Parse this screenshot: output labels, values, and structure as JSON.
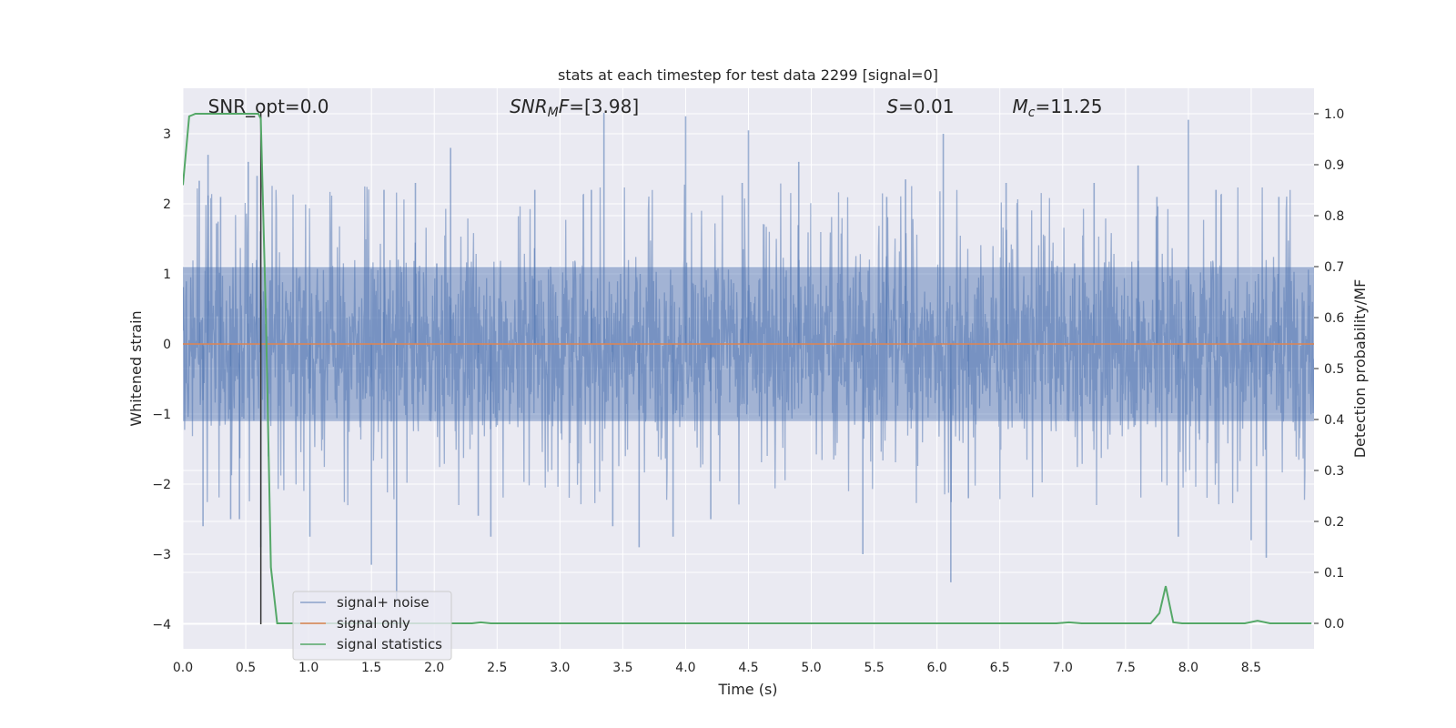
{
  "chart_data": {
    "type": "line",
    "title": "stats at each timestep for test data 2299 [signal=0]",
    "xlabel": "Time (s)",
    "ylabel": "Whitened strain",
    "y2label": "Detection probability/MF",
    "xlim": [
      0.0,
      9.0
    ],
    "ylim": [
      -4.35,
      3.65
    ],
    "y2lim": [
      -0.05,
      1.05
    ],
    "xticks": [
      "0.0",
      "0.5",
      "1.0",
      "1.5",
      "2.0",
      "2.5",
      "3.0",
      "3.5",
      "4.0",
      "4.5",
      "5.0",
      "5.5",
      "6.0",
      "6.5",
      "7.0",
      "7.5",
      "8.0",
      "8.5"
    ],
    "xtick_values": [
      0.0,
      0.5,
      1.0,
      1.5,
      2.0,
      2.5,
      3.0,
      3.5,
      4.0,
      4.5,
      5.0,
      5.5,
      6.0,
      6.5,
      7.0,
      7.5,
      8.0,
      8.5
    ],
    "yticks": [
      "3",
      "2",
      "1",
      "0",
      "−1",
      "−2",
      "−3",
      "−4"
    ],
    "ytick_values": [
      3,
      2,
      1,
      0,
      -1,
      -2,
      -3,
      -4
    ],
    "y2ticks": [
      "1.0",
      "0.9",
      "0.8",
      "0.7",
      "0.6",
      "0.5",
      "0.4",
      "0.3",
      "0.2",
      "0.1",
      "0.0"
    ],
    "y2tick_values": [
      1.0,
      0.9,
      0.8,
      0.7,
      0.6,
      0.5,
      0.4,
      0.3,
      0.2,
      0.1,
      0.0
    ],
    "grid": true,
    "legend_position": "lower-left",
    "series": [
      {
        "name": "signal+ noise",
        "color": "#4c72b0",
        "axis": "left",
        "kind": "noise",
        "dense_band": [
          -1.1,
          1.1
        ],
        "peaks": [
          {
            "x": 0.13,
            "y": 2.33
          },
          {
            "x": 0.16,
            "y": -2.6
          },
          {
            "x": 0.2,
            "y": 2.7
          },
          {
            "x": 0.3,
            "y": 2.1
          },
          {
            "x": 0.38,
            "y": -2.5
          },
          {
            "x": 0.45,
            "y": -2.5
          },
          {
            "x": 0.52,
            "y": 2.6
          },
          {
            "x": 0.59,
            "y": 2.4
          },
          {
            "x": 0.62,
            "y": -2.9
          },
          {
            "x": 1.01,
            "y": -2.75
          },
          {
            "x": 1.5,
            "y": -3.15
          },
          {
            "x": 1.6,
            "y": 2.2
          },
          {
            "x": 1.7,
            "y": -3.7
          },
          {
            "x": 1.85,
            "y": 2.3
          },
          {
            "x": 2.13,
            "y": 2.8
          },
          {
            "x": 2.35,
            "y": -2.45
          },
          {
            "x": 2.45,
            "y": -2.75
          },
          {
            "x": 2.8,
            "y": 2.2
          },
          {
            "x": 3.25,
            "y": 2.2
          },
          {
            "x": 3.35,
            "y": 3.3
          },
          {
            "x": 3.42,
            "y": -2.6
          },
          {
            "x": 3.63,
            "y": -2.9
          },
          {
            "x": 3.9,
            "y": -2.75
          },
          {
            "x": 4.0,
            "y": 3.25
          },
          {
            "x": 4.2,
            "y": -2.5
          },
          {
            "x": 4.45,
            "y": 2.3
          },
          {
            "x": 4.5,
            "y": 3.05
          },
          {
            "x": 4.9,
            "y": 2.6
          },
          {
            "x": 5.41,
            "y": -3.0
          },
          {
            "x": 5.6,
            "y": 2.1
          },
          {
            "x": 5.75,
            "y": 2.35
          },
          {
            "x": 6.05,
            "y": 3.0
          },
          {
            "x": 6.11,
            "y": -3.4
          },
          {
            "x": 6.25,
            "y": -2.2
          },
          {
            "x": 6.55,
            "y": 2.3
          },
          {
            "x": 7.25,
            "y": 2.3
          },
          {
            "x": 7.6,
            "y": 2.55
          },
          {
            "x": 7.75,
            "y": 2.1
          },
          {
            "x": 7.92,
            "y": -2.75
          },
          {
            "x": 8.0,
            "y": 3.2
          },
          {
            "x": 8.22,
            "y": 2.2
          },
          {
            "x": 8.5,
            "y": -2.8
          },
          {
            "x": 8.62,
            "y": -3.05
          },
          {
            "x": 8.72,
            "y": 2.1
          }
        ]
      },
      {
        "name": "signal only",
        "color": "#dd8452",
        "axis": "left",
        "points": [
          [
            0.0,
            0.0
          ],
          [
            9.0,
            0.0
          ]
        ]
      },
      {
        "name": "signal statistics",
        "color": "#55a868",
        "axis": "right",
        "points": [
          [
            0.0,
            0.86
          ],
          [
            0.05,
            0.995
          ],
          [
            0.1,
            1.0
          ],
          [
            0.6,
            1.0
          ],
          [
            0.62,
            0.99
          ],
          [
            0.66,
            0.6
          ],
          [
            0.7,
            0.11
          ],
          [
            0.75,
            0.0
          ],
          [
            2.3,
            0.0
          ],
          [
            2.37,
            0.002
          ],
          [
            2.45,
            0.0
          ],
          [
            6.95,
            0.0
          ],
          [
            7.05,
            0.002
          ],
          [
            7.15,
            0.0
          ],
          [
            7.7,
            0.0
          ],
          [
            7.77,
            0.02
          ],
          [
            7.82,
            0.073
          ],
          [
            7.88,
            0.002
          ],
          [
            7.95,
            0.0
          ],
          [
            8.45,
            0.0
          ],
          [
            8.55,
            0.005
          ],
          [
            8.65,
            0.0
          ],
          [
            8.98,
            0.0
          ]
        ]
      }
    ],
    "vline": {
      "x": 0.62,
      "ymin": -4.0,
      "ymax": 3.3,
      "color": "#333333"
    },
    "annotations": [
      {
        "text": "SNR_opt=0.0",
        "x": 0.2
      },
      {
        "text_italic": "SNR",
        "sub": "M",
        "text_italic2": "F",
        "text_rest": "=[3.98]",
        "x": 2.6
      },
      {
        "text_italic": "S",
        "text_rest": "=0.01",
        "x": 5.6
      },
      {
        "text_italic": "M",
        "sub": "c",
        "text_rest": "=11.25",
        "x": 6.6
      }
    ]
  }
}
